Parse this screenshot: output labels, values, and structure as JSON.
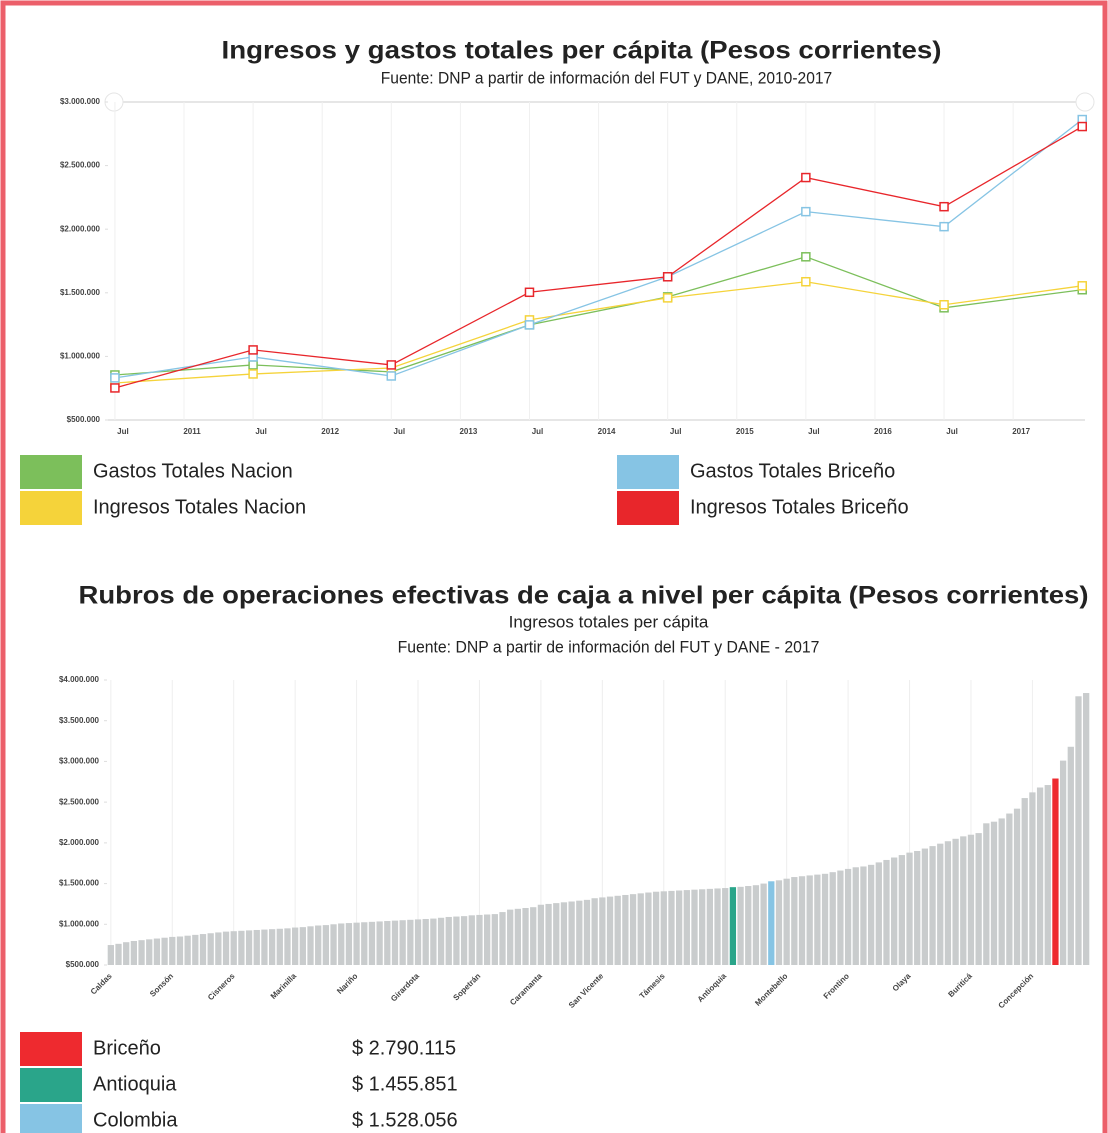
{
  "chart_data": [
    {
      "type": "line",
      "title": "Ingresos y gastos totales per cápita (Pesos corrientes)",
      "subtitle": "Fuente: DNP a partir de información del FUT y DANE, 2010-2017",
      "x": [
        2010.5,
        2011.5,
        2012.5,
        2013.5,
        2014.5,
        2015.5,
        2016.5,
        2017.5
      ],
      "xlim": [
        2010.45,
        2017.52
      ],
      "xticks": [
        {
          "value": 2010.5,
          "label": "Jul"
        },
        2011,
        {
          "value": 2011.5,
          "label": "Jul"
        },
        2012,
        {
          "value": 2012.5,
          "label": "Jul"
        },
        2013,
        {
          "value": 2013.5,
          "label": "Jul"
        },
        2014,
        {
          "value": 2014.5,
          "label": "Jul"
        },
        2015,
        {
          "value": 2015.5,
          "label": "Jul"
        },
        2016,
        {
          "value": 2016.5,
          "label": "Jul"
        },
        2017
      ],
      "ylim": [
        500000,
        3000000
      ],
      "yticks": [
        {
          "value": 500000,
          "label": "$500.000"
        },
        {
          "value": 1000000,
          "label": "$1.000.000"
        },
        {
          "value": 1500000,
          "label": "$1.500.000"
        },
        {
          "value": 2000000,
          "label": "$2.000.000"
        },
        {
          "value": 2500000,
          "label": "$2.500.000"
        },
        {
          "value": 3000000,
          "label": "$3.000.000"
        }
      ],
      "grid": true,
      "series": [
        {
          "name": "Gastos Totales Nacion",
          "color": "#7cbf5b",
          "values": [
            854000,
            933000,
            878000,
            1248000,
            1468000,
            1783000,
            1382000,
            1524000
          ]
        },
        {
          "name": "Ingresos Totales Nacion",
          "color": "#f5d33a",
          "values": [
            791000,
            862000,
            909000,
            1287000,
            1460000,
            1587000,
            1406000,
            1555000
          ]
        },
        {
          "name": "Gastos Totales Briceño",
          "color": "#86c4e4",
          "values": [
            831000,
            996000,
            846000,
            1248000,
            1626000,
            2138000,
            2020000,
            2862000
          ]
        },
        {
          "name": "Ingresos Totales Briceño",
          "color": "#e8262b",
          "values": [
            752000,
            1051000,
            933000,
            1504000,
            1626000,
            2406000,
            2177000,
            2807000
          ]
        }
      ]
    },
    {
      "type": "bar",
      "title": "Rubros de operaciones efectivas de caja a nivel per cápita (Pesos corrientes)",
      "subtitle": "Ingresos totales per cápita",
      "source": "Fuente: DNP a partir de información del FUT y DANE - 2017",
      "color": "#c9cccd",
      "categories": [
        "Caldas",
        null,
        null,
        null,
        null,
        null,
        null,
        null,
        "Sonsón",
        null,
        null,
        null,
        null,
        null,
        null,
        null,
        "Cisneros",
        null,
        null,
        null,
        null,
        null,
        null,
        null,
        "Marinilla",
        null,
        null,
        null,
        null,
        null,
        null,
        null,
        "Nariño",
        null,
        null,
        null,
        null,
        null,
        null,
        null,
        "Girardota",
        null,
        null,
        null,
        null,
        null,
        null,
        null,
        "Sopetrán",
        null,
        null,
        null,
        null,
        null,
        null,
        null,
        "Caramanta",
        null,
        null,
        null,
        null,
        null,
        null,
        null,
        "San Vicente",
        null,
        null,
        null,
        null,
        null,
        null,
        null,
        "Támesis",
        null,
        null,
        null,
        null,
        null,
        null,
        null,
        "Antioquia",
        null,
        null,
        null,
        null,
        null,
        null,
        null,
        "Montebello",
        null,
        null,
        null,
        null,
        null,
        null,
        null,
        "Frontino",
        null,
        null,
        null,
        null,
        null,
        null,
        null,
        "Olaya",
        null,
        null,
        null,
        null,
        null,
        null,
        null,
        "Buriticá",
        null,
        null,
        null,
        null,
        null,
        null,
        null,
        "Concepción",
        null,
        null,
        null,
        null,
        null,
        null,
        null
      ],
      "values": [
        745000,
        760000,
        780000,
        795000,
        805000,
        815000,
        825000,
        835000,
        845000,
        850000,
        860000,
        870000,
        880000,
        890000,
        900000,
        910000,
        915000,
        920000,
        925000,
        930000,
        935000,
        940000,
        945000,
        950000,
        960000,
        965000,
        975000,
        985000,
        990000,
        1000000,
        1010000,
        1015000,
        1020000,
        1025000,
        1030000,
        1035000,
        1040000,
        1045000,
        1050000,
        1055000,
        1060000,
        1065000,
        1070000,
        1080000,
        1090000,
        1095000,
        1100000,
        1110000,
        1115000,
        1120000,
        1125000,
        1150000,
        1180000,
        1190000,
        1200000,
        1210000,
        1240000,
        1250000,
        1260000,
        1270000,
        1280000,
        1290000,
        1300000,
        1320000,
        1330000,
        1340000,
        1350000,
        1360000,
        1370000,
        1380000,
        1390000,
        1400000,
        1405000,
        1410000,
        1415000,
        1420000,
        1425000,
        1430000,
        1435000,
        1440000,
        1445000,
        1455851,
        1460000,
        1470000,
        1480000,
        1500000,
        1528056,
        1540000,
        1560000,
        1580000,
        1590000,
        1600000,
        1610000,
        1620000,
        1640000,
        1660000,
        1680000,
        1700000,
        1710000,
        1730000,
        1760000,
        1790000,
        1820000,
        1850000,
        1880000,
        1900000,
        1930000,
        1960000,
        1990000,
        2020000,
        2050000,
        2080000,
        2100000,
        2120000,
        2240000,
        2260000,
        2300000,
        2360000,
        2420000,
        2550000,
        2620000,
        2680000,
        2710000,
        2790115,
        3010000,
        3180000,
        3800000,
        3840000
      ],
      "ylim": [
        500000,
        4000000
      ],
      "yticks": [
        {
          "value": 500000,
          "label": "$500.000"
        },
        {
          "value": 1000000,
          "label": "$1.000.000"
        },
        {
          "value": 1500000,
          "label": "$1.500.000"
        },
        {
          "value": 2000000,
          "label": "$2.000.000"
        },
        {
          "value": 2500000,
          "label": "$2.500.000"
        },
        {
          "value": 3000000,
          "label": "$3.000.000"
        },
        {
          "value": 3500000,
          "label": "$3.500.000"
        },
        {
          "value": 4000000,
          "label": "$4.000.000"
        }
      ],
      "grid": true,
      "legend": [
        {
          "name": "Briceño",
          "color": "#ee2a2f",
          "bar": 123,
          "value": 2790115,
          "value_label": "$ 2.790.115"
        },
        {
          "name": "Antioquia",
          "color": "#2aa58a",
          "bar": 81,
          "value": 1455851,
          "value_label": "$ 1.455.851"
        },
        {
          "name": "Colombia",
          "color": "#86c4e4",
          "bar": 86,
          "value": 1528056,
          "value_label": "$ 1.528.056"
        }
      ]
    }
  ]
}
